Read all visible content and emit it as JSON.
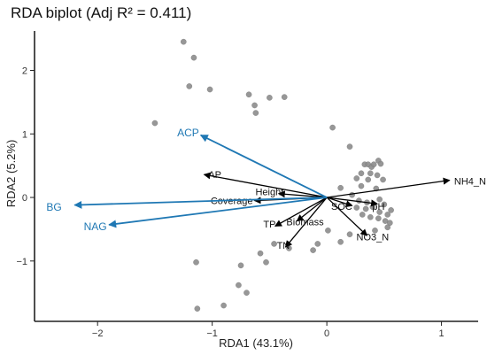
{
  "chart_data": {
    "type": "scatter",
    "title": "RDA biplot  (Adj R² = 0.411)",
    "xlabel": "RDA1 (43.1%)",
    "ylabel": "RDA2 (5.2%)",
    "xlim": [
      -2.55,
      1.32
    ],
    "ylim": [
      -1.95,
      2.62
    ],
    "xticks": [
      -2,
      -1,
      0,
      1
    ],
    "yticks": [
      -1,
      0,
      1,
      2
    ],
    "xtick_labels": [
      "−2",
      "−1",
      "0",
      "1"
    ],
    "ytick_labels": [
      "−1",
      "0",
      "1",
      "2"
    ],
    "grid": false,
    "colors": {
      "points": "#8c8c8c",
      "env_arrows": "#000000",
      "enzyme_arrows": "#1f78b4",
      "axis": "#222222"
    },
    "points": [
      {
        "x": -1.25,
        "y": 2.45
      },
      {
        "x": -1.16,
        "y": 2.2
      },
      {
        "x": -1.2,
        "y": 1.75
      },
      {
        "x": -1.02,
        "y": 1.7
      },
      {
        "x": -0.68,
        "y": 1.62
      },
      {
        "x": -0.63,
        "y": 1.45
      },
      {
        "x": -0.62,
        "y": 1.33
      },
      {
        "x": -0.5,
        "y": 1.57
      },
      {
        "x": -0.37,
        "y": 1.58
      },
      {
        "x": -1.5,
        "y": 1.17
      },
      {
        "x": 0.05,
        "y": 1.1
      },
      {
        "x": 0.2,
        "y": 0.8
      },
      {
        "x": 0.33,
        "y": 0.52
      },
      {
        "x": 0.36,
        "y": 0.52
      },
      {
        "x": 0.39,
        "y": 0.48
      },
      {
        "x": 0.45,
        "y": 0.58
      },
      {
        "x": 0.41,
        "y": 0.52
      },
      {
        "x": 0.47,
        "y": 0.53
      },
      {
        "x": 0.3,
        "y": 0.38
      },
      {
        "x": 0.38,
        "y": 0.38
      },
      {
        "x": 0.44,
        "y": 0.35
      },
      {
        "x": 0.26,
        "y": 0.3
      },
      {
        "x": 0.36,
        "y": 0.28
      },
      {
        "x": 0.49,
        "y": 0.28
      },
      {
        "x": 0.12,
        "y": 0.15
      },
      {
        "x": 0.3,
        "y": 0.18
      },
      {
        "x": 0.43,
        "y": 0.14
      },
      {
        "x": 0.22,
        "y": 0.04
      },
      {
        "x": 0.28,
        "y": -0.05
      },
      {
        "x": 0.35,
        "y": -0.08
      },
      {
        "x": 0.46,
        "y": -0.03
      },
      {
        "x": 0.5,
        "y": -0.11
      },
      {
        "x": 0.26,
        "y": -0.16
      },
      {
        "x": 0.34,
        "y": -0.18
      },
      {
        "x": 0.4,
        "y": -0.15
      },
      {
        "x": 0.46,
        "y": -0.23
      },
      {
        "x": 0.53,
        "y": -0.27
      },
      {
        "x": 0.56,
        "y": -0.2
      },
      {
        "x": 0.38,
        "y": -0.31
      },
      {
        "x": 0.45,
        "y": -0.33
      },
      {
        "x": 0.51,
        "y": -0.37
      },
      {
        "x": 0.55,
        "y": -0.4
      },
      {
        "x": 0.31,
        "y": -0.27
      },
      {
        "x": 0.53,
        "y": -0.47
      },
      {
        "x": 0.42,
        "y": -0.52
      },
      {
        "x": 0.12,
        "y": -0.7
      },
      {
        "x": 0.2,
        "y": -0.58
      },
      {
        "x": 0.01,
        "y": -0.52
      },
      {
        "x": -0.08,
        "y": -0.73
      },
      {
        "x": -0.12,
        "y": -0.83
      },
      {
        "x": -0.46,
        "y": -0.73
      },
      {
        "x": -0.33,
        "y": -0.8
      },
      {
        "x": -0.58,
        "y": -0.88
      },
      {
        "x": -0.53,
        "y": -1.02
      },
      {
        "x": -0.75,
        "y": -1.07
      },
      {
        "x": -0.77,
        "y": -1.38
      },
      {
        "x": -0.7,
        "y": -1.5
      },
      {
        "x": -0.9,
        "y": -1.7
      },
      {
        "x": -1.13,
        "y": -1.75
      },
      {
        "x": -1.14,
        "y": -1.02
      }
    ],
    "env_arrows": [
      {
        "name": "AP",
        "x": -1.07,
        "y": 0.36,
        "lx": -0.92,
        "ly": 0.36,
        "anchor": "end"
      },
      {
        "name": "Height",
        "x": -0.42,
        "y": 0.06,
        "lx": -0.5,
        "ly": 0.09,
        "anchor": "middle"
      },
      {
        "name": "Coverage",
        "x": -0.63,
        "y": -0.05,
        "lx": -0.83,
        "ly": -0.05,
        "anchor": "middle"
      },
      {
        "name": "TP",
        "x": -0.45,
        "y": -0.45,
        "lx": -0.5,
        "ly": -0.42,
        "anchor": "middle"
      },
      {
        "name": "TN",
        "x": -0.36,
        "y": -0.78,
        "lx": -0.38,
        "ly": -0.75,
        "anchor": "middle"
      },
      {
        "name": "Biomass",
        "x": -0.26,
        "y": -0.37,
        "lx": -0.19,
        "ly": -0.38,
        "anchor": "middle"
      },
      {
        "name": "SOC",
        "x": 0.22,
        "y": -0.13,
        "lx": 0.13,
        "ly": -0.14,
        "anchor": "middle"
      },
      {
        "name": "pH",
        "x": 0.44,
        "y": -0.1,
        "lx": 0.45,
        "ly": -0.14,
        "anchor": "middle"
      },
      {
        "name": "NO3_N",
        "x": 0.35,
        "y": -0.6,
        "lx": 0.4,
        "ly": -0.62,
        "anchor": "middle"
      },
      {
        "name": "NH4_N",
        "x": 1.07,
        "y": 0.27,
        "lx": 1.25,
        "ly": 0.26,
        "anchor": "middle"
      }
    ],
    "enzyme_arrows": [
      {
        "name": "ACP",
        "x": -1.1,
        "y": 0.98,
        "lx": -1.21,
        "ly": 1.02,
        "anchor": "middle"
      },
      {
        "name": "BG",
        "x": -2.2,
        "y": -0.12,
        "lx": -2.38,
        "ly": -0.15,
        "anchor": "middle"
      },
      {
        "name": "NAG",
        "x": -1.9,
        "y": -0.43,
        "lx": -2.02,
        "ly": -0.46,
        "anchor": "middle"
      }
    ]
  }
}
